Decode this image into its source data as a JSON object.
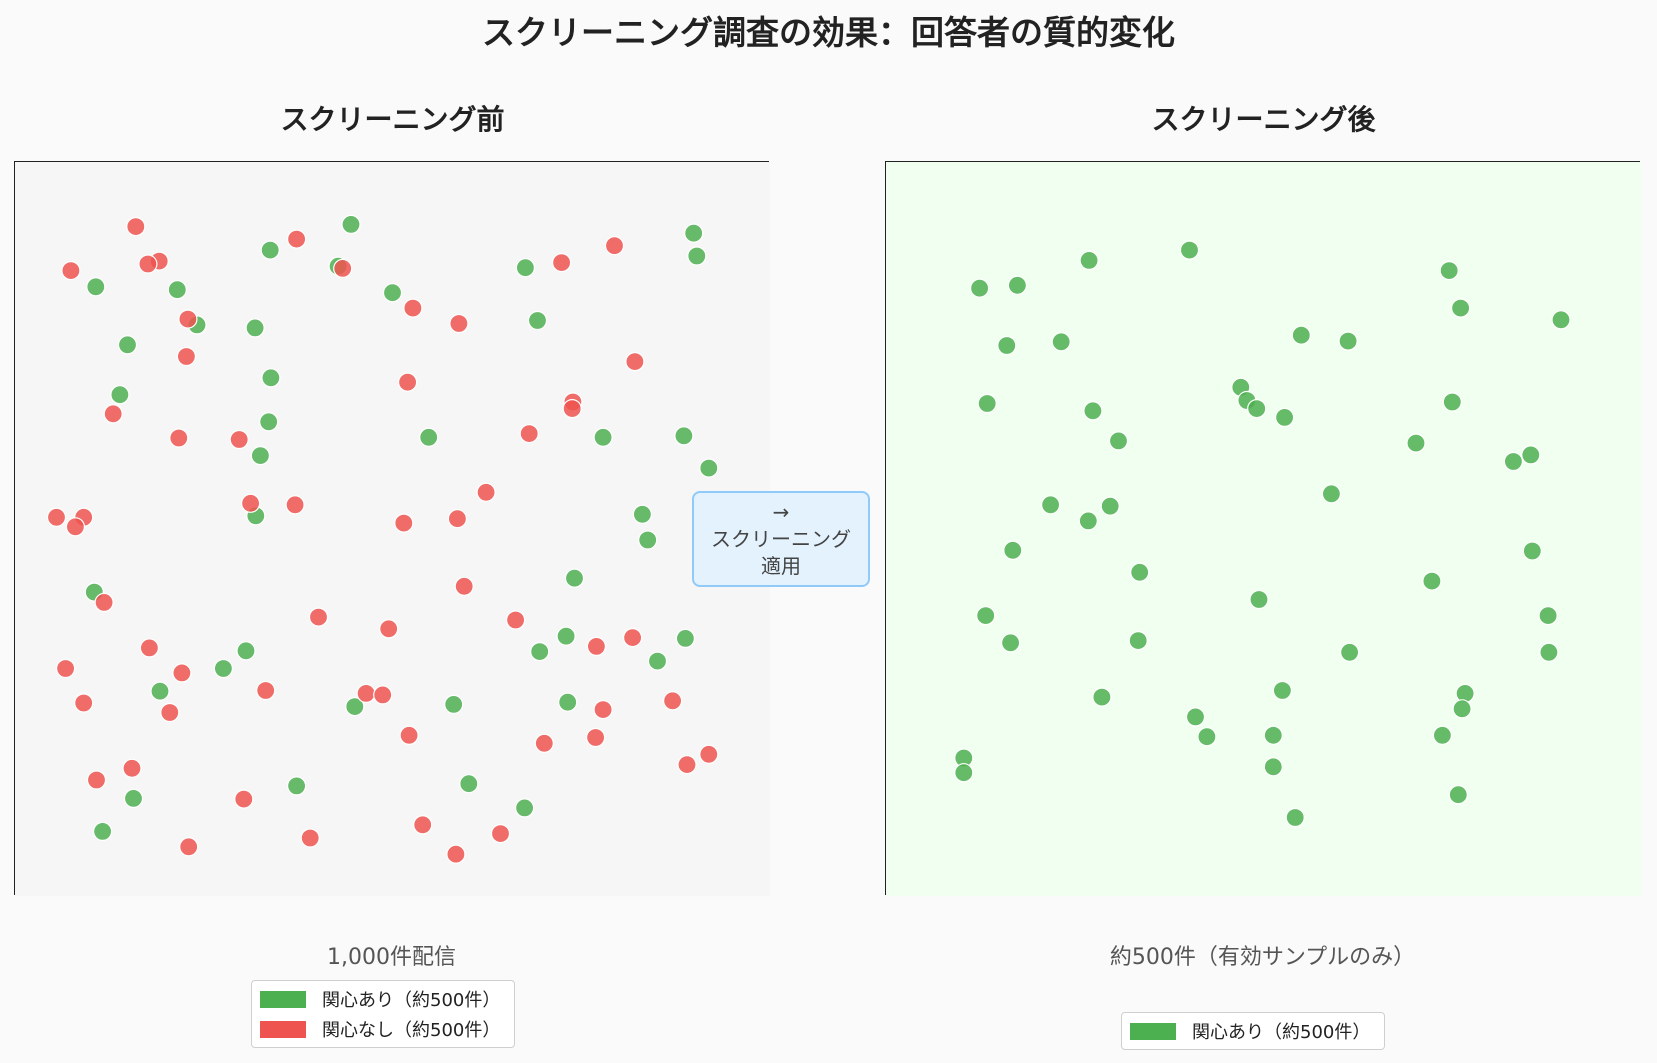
{
  "suptitle": "スクリーニング調査の効果：回答者の質的変化",
  "colors": {
    "interested": "#4caf50",
    "not_interested": "#ef5350",
    "left_bg": "#f6f6f6",
    "right_bg": "#f0fff0",
    "callout_bg": "#e3f2fd",
    "callout_border": "#90caf9"
  },
  "callout": {
    "arrow": "→",
    "line1": "スクリーニング",
    "line2": "適用"
  },
  "chart_data": [
    {
      "type": "scatter",
      "title": "スクリーニング前",
      "xlabel": "1,000件配信",
      "ylabel": "",
      "xlim": [
        0,
        100
      ],
      "ylim": [
        0,
        100
      ],
      "grid": false,
      "legend": "lower-center",
      "series": [
        {
          "name": "関心あり（約500件）",
          "color": "#4caf50",
          "points": [
            [
              44.5,
              91.5
            ],
            [
              89.9,
              90.3
            ],
            [
              10.7,
              83.0
            ],
            [
              33.8,
              88.0
            ],
            [
              42.8,
              85.8
            ],
            [
              67.6,
              85.6
            ],
            [
              90.3,
              87.2
            ],
            [
              21.5,
              82.6
            ],
            [
              50.0,
              82.2
            ],
            [
              24.1,
              77.8
            ],
            [
              14.9,
              75.1
            ],
            [
              69.2,
              78.4
            ],
            [
              31.8,
              77.4
            ],
            [
              33.9,
              70.6
            ],
            [
              13.9,
              68.3
            ],
            [
              33.6,
              64.6
            ],
            [
              32.5,
              60.0
            ],
            [
              54.8,
              62.5
            ],
            [
              77.9,
              62.5
            ],
            [
              88.6,
              62.7
            ],
            [
              91.9,
              58.3
            ],
            [
              83.1,
              52.0
            ],
            [
              83.8,
              48.5
            ],
            [
              31.9,
              51.8
            ],
            [
              74.1,
              43.3
            ],
            [
              10.5,
              41.4
            ],
            [
              73.0,
              35.4
            ],
            [
              88.8,
              35.1
            ],
            [
              69.5,
              33.3
            ],
            [
              30.6,
              33.4
            ],
            [
              85.1,
              32.0
            ],
            [
              27.6,
              31.0
            ],
            [
              19.2,
              27.9
            ],
            [
              73.2,
              26.4
            ],
            [
              58.1,
              26.1
            ],
            [
              45.0,
              25.8
            ],
            [
              37.3,
              15.0
            ],
            [
              60.1,
              15.3
            ],
            [
              15.7,
              13.3
            ],
            [
              67.5,
              12.0
            ],
            [
              11.6,
              8.8
            ]
          ]
        },
        {
          "name": "関心なし（約500件）",
          "color": "#ef5350",
          "points": [
            [
              16.0,
              91.2
            ],
            [
              37.3,
              89.5
            ],
            [
              79.4,
              88.6
            ],
            [
              19.1,
              86.5
            ],
            [
              17.6,
              86.1
            ],
            [
              43.4,
              85.5
            ],
            [
              72.4,
              86.3
            ],
            [
              7.4,
              85.2
            ],
            [
              52.7,
              80.1
            ],
            [
              22.9,
              78.6
            ],
            [
              58.8,
              78.0
            ],
            [
              22.7,
              73.5
            ],
            [
              82.1,
              72.8
            ],
            [
              52.0,
              70.0
            ],
            [
              73.9,
              67.3
            ],
            [
              73.8,
              66.4
            ],
            [
              13.0,
              65.7
            ],
            [
              68.1,
              63.0
            ],
            [
              21.7,
              62.4
            ],
            [
              29.7,
              62.2
            ],
            [
              62.4,
              55.0
            ],
            [
              31.2,
              53.5
            ],
            [
              37.1,
              53.3
            ],
            [
              5.5,
              51.6
            ],
            [
              9.1,
              51.6
            ],
            [
              8.0,
              50.3
            ],
            [
              51.5,
              50.8
            ],
            [
              58.6,
              51.4
            ],
            [
              59.5,
              42.2
            ],
            [
              11.8,
              40.0
            ],
            [
              40.2,
              38.0
            ],
            [
              66.3,
              37.6
            ],
            [
              49.5,
              36.4
            ],
            [
              81.8,
              35.2
            ],
            [
              77.0,
              34.0
            ],
            [
              17.8,
              33.8
            ],
            [
              6.7,
              31.0
            ],
            [
              22.1,
              30.4
            ],
            [
              46.5,
              27.6
            ],
            [
              48.7,
              27.4
            ],
            [
              33.2,
              28.0
            ],
            [
              9.1,
              26.3
            ],
            [
              20.5,
              25.0
            ],
            [
              87.1,
              26.6
            ],
            [
              77.9,
              25.4
            ],
            [
              52.2,
              21.9
            ],
            [
              76.9,
              21.6
            ],
            [
              70.1,
              20.8
            ],
            [
              91.9,
              19.3
            ],
            [
              89.0,
              17.9
            ],
            [
              15.5,
              17.4
            ],
            [
              10.8,
              15.8
            ],
            [
              30.3,
              13.2
            ],
            [
              54.0,
              9.7
            ],
            [
              39.1,
              7.9
            ],
            [
              64.3,
              8.5
            ],
            [
              23.0,
              6.7
            ],
            [
              58.4,
              5.7
            ]
          ]
        }
      ]
    },
    {
      "type": "scatter",
      "title": "スクリーニング後",
      "xlabel": "約500件（有効サンプルのみ）",
      "ylabel": "",
      "xlim": [
        0,
        100
      ],
      "ylim": [
        0,
        100
      ],
      "grid": false,
      "legend": "lower-center",
      "series": [
        {
          "name": "関心あり（約500件）",
          "color": "#4caf50",
          "points": [
            [
              40.2,
              88.0
            ],
            [
              26.9,
              86.6
            ],
            [
              74.6,
              85.2
            ],
            [
              17.4,
              83.2
            ],
            [
              12.4,
              82.8
            ],
            [
              89.4,
              78.5
            ],
            [
              76.1,
              80.1
            ],
            [
              55.0,
              76.4
            ],
            [
              61.2,
              75.6
            ],
            [
              23.2,
              75.5
            ],
            [
              16.0,
              75.0
            ],
            [
              47.0,
              69.3
            ],
            [
              47.8,
              67.5
            ],
            [
              49.1,
              66.4
            ],
            [
              75.0,
              67.3
            ],
            [
              13.4,
              67.1
            ],
            [
              27.4,
              66.1
            ],
            [
              52.8,
              65.2
            ],
            [
              30.8,
              62.0
            ],
            [
              70.2,
              61.7
            ],
            [
              83.1,
              59.2
            ],
            [
              85.4,
              60.1
            ],
            [
              59.0,
              54.8
            ],
            [
              21.8,
              53.3
            ],
            [
              29.7,
              53.1
            ],
            [
              26.8,
              51.1
            ],
            [
              16.8,
              47.1
            ],
            [
              85.6,
              47.0
            ],
            [
              33.6,
              44.1
            ],
            [
              72.3,
              42.9
            ],
            [
              49.4,
              40.4
            ],
            [
              13.2,
              38.2
            ],
            [
              87.7,
              38.2
            ],
            [
              16.5,
              34.5
            ],
            [
              33.4,
              34.8
            ],
            [
              61.4,
              33.2
            ],
            [
              87.8,
              33.2
            ],
            [
              52.5,
              28.0
            ],
            [
              76.7,
              27.6
            ],
            [
              28.6,
              27.1
            ],
            [
              76.3,
              25.5
            ],
            [
              41.0,
              24.4
            ],
            [
              42.5,
              21.7
            ],
            [
              73.7,
              21.9
            ],
            [
              51.3,
              21.9
            ],
            [
              10.3,
              18.8
            ],
            [
              10.3,
              16.8
            ],
            [
              51.3,
              17.6
            ],
            [
              75.8,
              13.8
            ],
            [
              54.2,
              10.7
            ]
          ]
        }
      ]
    }
  ]
}
